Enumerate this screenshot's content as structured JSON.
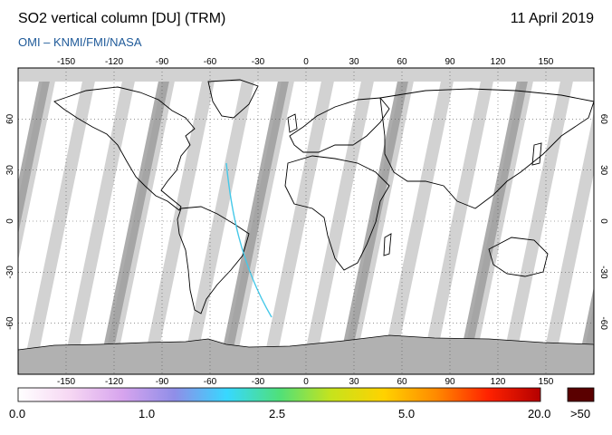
{
  "header": {
    "title": "SO2 vertical column [DU] (TRM)",
    "date": "11 April 2019",
    "credit": "OMI  –  KNMI/FMI/NASA"
  },
  "map": {
    "lon_ticks": [
      "-150",
      "-120",
      "-90",
      "-60",
      "-30",
      "0",
      "30",
      "60",
      "90",
      "120",
      "150"
    ],
    "lat_ticks_left": [
      "60",
      "30",
      "0",
      "-30",
      "-60"
    ],
    "lat_ticks_right": [
      "60",
      "30",
      "0",
      "-30",
      "-60"
    ]
  },
  "colorbar": {
    "labels": [
      "0.0",
      "1.0",
      "2.5",
      "5.0",
      "20.0"
    ],
    "over_label": ">50",
    "over_color": "#5a0000",
    "stops": [
      "#ffffff",
      "#f6d7f3",
      "#d7a4ee",
      "#8f8ee8",
      "#37d8ff",
      "#4fe07a",
      "#c7e31c",
      "#ffd200",
      "#ff8a00",
      "#ff2200",
      "#b40000"
    ]
  },
  "colors": {
    "no_data": "#d2d2d2",
    "swath_shadow": "#9e9e9e",
    "land_outline": "#000000",
    "credit_text": "#1f5a99"
  }
}
